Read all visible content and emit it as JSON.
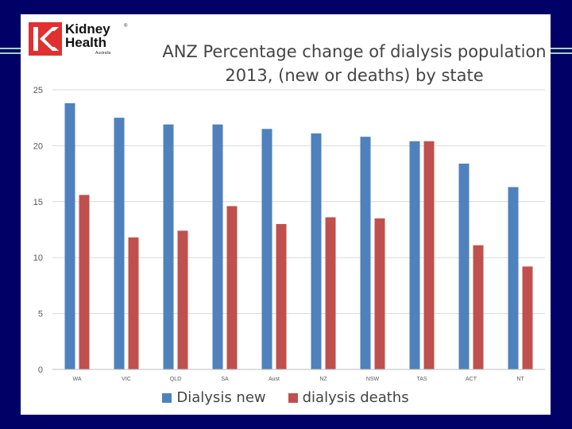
{
  "logo": {
    "line1": "Kidney",
    "line2": "Health",
    "sub": "Australia",
    "reg": "®"
  },
  "colors": {
    "new": "#4f81bd",
    "deaths": "#c0504d",
    "background": "#000066"
  },
  "chart_data": {
    "type": "bar",
    "title_line1": "ANZ Percentage change of dialysis population",
    "title_line2": "2013, (new or deaths) by state",
    "categories": [
      "WA",
      "VIC",
      "QLD",
      "SA",
      "Aust",
      "NZ",
      "NSW",
      "TAS",
      "ACT",
      "NT"
    ],
    "series": [
      {
        "name": "Dialysis new",
        "values": [
          23.8,
          22.5,
          21.9,
          21.9,
          21.5,
          21.1,
          20.8,
          20.4,
          18.4,
          16.3
        ]
      },
      {
        "name": "dialysis deaths",
        "values": [
          15.6,
          11.8,
          12.4,
          14.6,
          13.0,
          13.6,
          13.5,
          20.4,
          11.1,
          9.2
        ]
      }
    ],
    "yticks": [
      "0",
      "5",
      "10",
      "15",
      "20",
      "25"
    ],
    "ylim": [
      0,
      25
    ],
    "grid": true,
    "legend": "bottom"
  }
}
